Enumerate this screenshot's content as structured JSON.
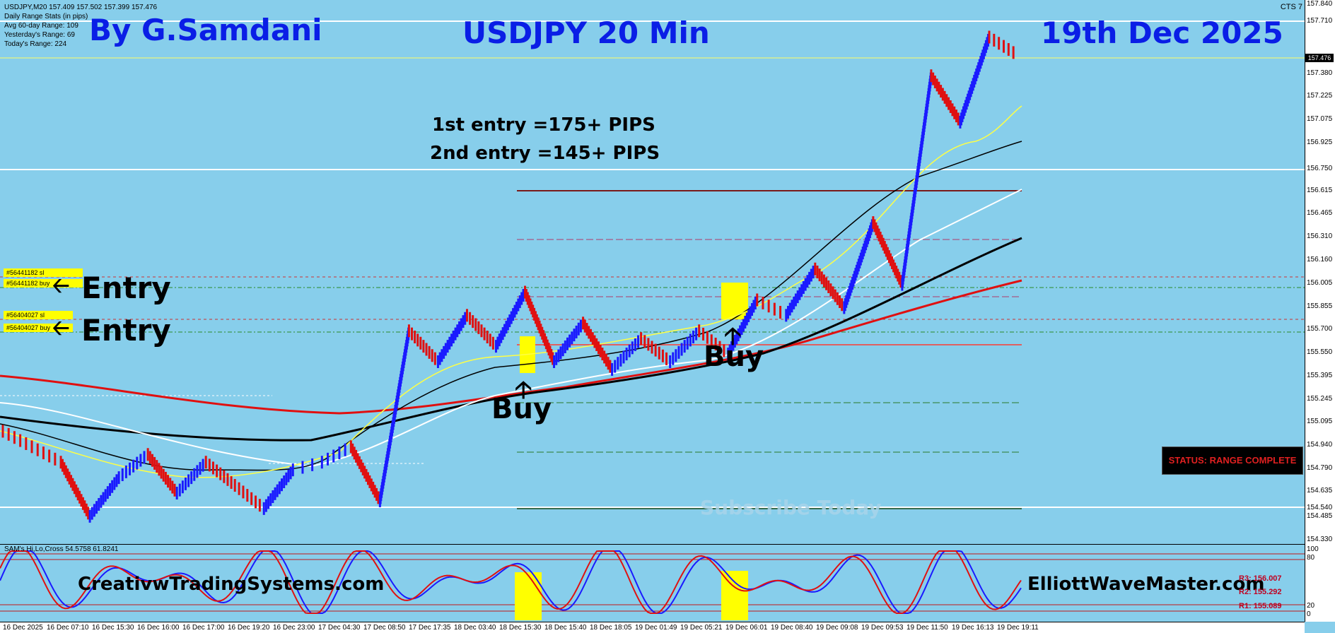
{
  "chart_header": "USDJPY,M20  157.409 157.502 157.399 157.476",
  "stats": [
    "Daily Range Stats (in pips)",
    "Avg 60-day Range: 109",
    "Yesterday's Range: 69",
    "Today's Range: 224"
  ],
  "author": "By G.Samdani",
  "title": "USDJPY 20 Min",
  "date": "19th Dec 2025",
  "cts_label": "CTS 7",
  "pips": {
    "first": "1st entry =175+ PIPS",
    "second": "2nd entry =145+ PIPS"
  },
  "tickets": [
    "#56441182 sl",
    "#56441182 buy",
    "#56404027 sl",
    "#56404027 buy"
  ],
  "entry_label": "Entry",
  "buy_label": "Buy",
  "status": "STATUS: RANGE COMPLETE",
  "watermark": "Subscribe Today",
  "footer_left": "CreativwTradingSystems.com",
  "footer_right": "ElliottWaveMaster.com",
  "osc_label": "SAM's Hi,Lo,Cross 54.5758 61.8241",
  "pivots": [
    "R3: 156.007",
    "R2: 155.292",
    "R1: 155.089"
  ],
  "colors": {
    "background": "#87CEEB",
    "title_blue": "#0a1ee6",
    "bull": "#1a1aff",
    "bear": "#e01010",
    "highlight": "#ffff00"
  },
  "price_axis": [
    "157.840",
    "157.710",
    "157.476",
    "157.380",
    "157.225",
    "157.075",
    "156.925",
    "156.750",
    "156.615",
    "156.465",
    "156.310",
    "156.160",
    "156.005",
    "155.855",
    "155.700",
    "155.550",
    "155.395",
    "155.245",
    "155.095",
    "154.940",
    "154.790",
    "154.635",
    "154.540",
    "154.485",
    "154.330"
  ],
  "osc_axis": [
    "100",
    "80",
    "20",
    "0"
  ],
  "time_axis": [
    "16 Dec 2025",
    "16 Dec 07:10",
    "16 Dec 15:30",
    "16 Dec 16:00",
    "16 Dec 17:00",
    "16 Dec 19:20",
    "16 Dec 23:00",
    "17 Dec 04:30",
    "17 Dec 08:50",
    "17 Dec 17:35",
    "18 Dec 03:40",
    "18 Dec 15:30",
    "18 Dec 15:40",
    "18 Dec 18:05",
    "19 Dec 01:49",
    "19 Dec 05:21",
    "19 Dec 06:01",
    "19 Dec 08:40",
    "19 Dec 09:08",
    "19 Dec 09:53",
    "19 Dec 11:50",
    "19 Dec 16:13",
    "19 Dec 19:11"
  ],
  "chart_data": {
    "type": "line",
    "symbol": "USDJPY",
    "timeframe": "M20",
    "ylim": [
      154.33,
      157.84
    ],
    "current_price": 157.476,
    "close_path": [
      155.05,
      154.95,
      154.85,
      154.5,
      154.75,
      154.9,
      154.65,
      154.85,
      154.7,
      154.55,
      154.8,
      154.85,
      154.95,
      154.6,
      155.7,
      155.5,
      155.8,
      155.6,
      155.95,
      155.5,
      155.75,
      155.45,
      155.65,
      155.5,
      155.7,
      155.55,
      155.9,
      155.8,
      156.1,
      155.85,
      156.4,
      156.0,
      157.35,
      157.05,
      157.6,
      157.48
    ]
  }
}
